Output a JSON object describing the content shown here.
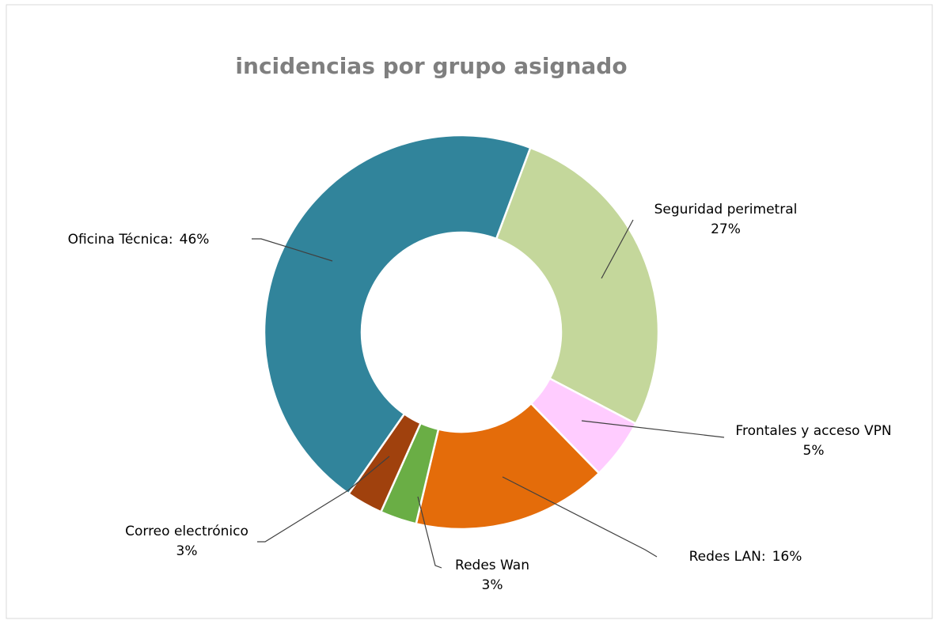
{
  "chart_data": {
    "type": "donut",
    "title": "incidencias por grupo asignado",
    "categories": [
      "Seguridad perimetral",
      "Frontales y acceso VPN",
      "Redes LAN:",
      "Redes Wan",
      "Correo electrónico",
      "Oficina Técnica:"
    ],
    "values": [
      27,
      5,
      16,
      3,
      3,
      46
    ],
    "value_labels": [
      "27%",
      "5%",
      "16%",
      "3%",
      "3%",
      "46%"
    ],
    "colors": [
      "#c4d79b",
      "#ffccff",
      "#e46c0a",
      "#6aae45",
      "#a0410d",
      "#31849b"
    ]
  }
}
